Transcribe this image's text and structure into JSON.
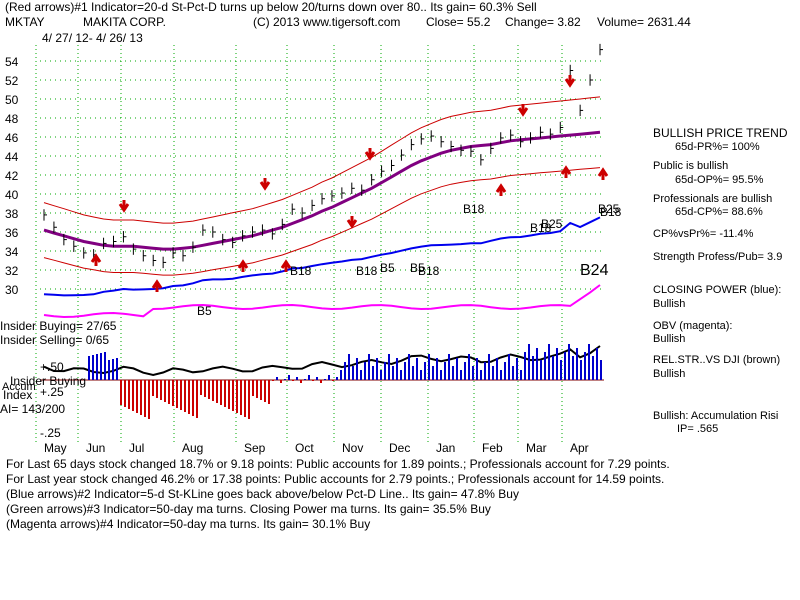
{
  "header": {
    "line1": "(Red arrows)#1 Indicator=20-d St-Pct-D turns up below 20/turns down over 80.. Its gain= 60.3% Sell",
    "ticker": "MKTAY",
    "company": "MAKITA CORP.",
    "copyright": "(C) 2013 www.tigersoft.com",
    "close": "Close=  55.2",
    "change": "Change= 3.82",
    "volume": "Volume= 2631.44",
    "date_range": "4/ 27/ 12-  4/ 26/ 13"
  },
  "insider": {
    "buying": "Insider Buying= 27/65",
    "selling": "Insider Selling= 0/65",
    "buying_index_1": "Insider Buying",
    "buying_index_2": "Index",
    "ai": "AI= 143/200",
    "accum_label": "Accum",
    "plus50": "+.50",
    "plus25": "+.25",
    "minus25": "-.25"
  },
  "side_panel": {
    "bullish_trend": "BULLISH PRICE TREND",
    "pr": "65d-PR%= 100%",
    "public_bullish": "Public is bullish",
    "op": "65d-OP%= 95.5%",
    "prof_bullish": "Professionals are bullish",
    "cp": "65d-CP%= 88.6%",
    "cp_vs_pr": "CP%vsPr%= -11.4%",
    "strength": "Strength Profess/Pub= 3.9",
    "closing_power": "CLOSING POWER (blue):",
    "closing_power_val": "Bullish",
    "obv": "OBV (magenta):",
    "obv_val": "Bullish",
    "relstr": "REL.STR..VS DJI (brown)",
    "relstr_val": "Bullish",
    "accum": "Bullish: Accumulation Risi",
    "ip": "IP=  .565"
  },
  "footer": {
    "line1": "For Last 65 days stock changed  18.7% or  9.18 points:  Public accounts for  1.89 points.;  Professionals account for  7.29 points.",
    "line2": "For Last year stock changed  46.2% or  17.38 points:  Public accounts for  2.79 points.;  Professionals account for  14.59 points.",
    "line3": "(Blue arrows)#2 Indicator=5-d St-KLine goes back above/below Pct-D Line.. Its gain= 47.8% Buy",
    "line4": "(Green arrows)#3 Indicator=50-day ma turns. Closing Power ma turns. Its gain= 35.5% Buy",
    "line5": "(Magenta arrows)#4 Indicator=50-day ma turns. Its gain= 30.1% Buy"
  },
  "colors": {
    "band": "#cc0000",
    "ma": "#800080",
    "closing_power": "#0000ee",
    "obv": "#ff00ff",
    "accum_blue": "#0000cc",
    "accum_red": "#cc0000",
    "grid": "#00aa00"
  },
  "chart_data": {
    "type": "line",
    "title": "MKTAY MAKITA CORP.",
    "x_ticks": [
      "May",
      "Jun",
      "Jul",
      "Aug",
      "Sep",
      "Oct",
      "Nov",
      "Dec",
      "Jan",
      "Feb",
      "Mar",
      "Apr"
    ],
    "y_ticks": [
      30,
      32,
      34,
      36,
      38,
      40,
      42,
      44,
      46,
      48,
      50,
      52,
      54
    ],
    "ylim": [
      29,
      56
    ],
    "price_close": [
      37.8,
      36.5,
      35.2,
      34.5,
      33.8,
      33.6,
      34.8,
      35.0,
      35.5,
      34.2,
      33.5,
      33.0,
      32.8,
      33.8,
      33.5,
      34.4,
      36.2,
      36.0,
      35.2,
      34.9,
      35.6,
      36.0,
      36.2,
      35.8,
      36.8,
      38.4,
      38.0,
      38.8,
      39.5,
      39.8,
      40.1,
      40.6,
      40.4,
      41.5,
      42.4,
      43.0,
      44.1,
      45.2,
      45.8,
      46.1,
      45.5,
      45.0,
      44.6,
      44.5,
      43.6,
      44.8,
      45.9,
      46.2,
      45.5,
      45.9,
      46.5,
      46.3,
      47.0,
      53.0,
      48.8,
      52.0,
      55.2
    ],
    "ma50": [
      36.2,
      35.9,
      35.6,
      35.3,
      35.0,
      34.8,
      34.6,
      34.5,
      34.5,
      34.5,
      34.4,
      34.3,
      34.2,
      34.2,
      34.3,
      34.4,
      34.6,
      34.8,
      35.0,
      35.2,
      35.4,
      35.6,
      35.9,
      36.2,
      36.5,
      36.9,
      37.3,
      37.7,
      38.2,
      38.6,
      39.1,
      39.6,
      40.1,
      40.6,
      41.2,
      41.8,
      42.4,
      43.0,
      43.5,
      43.9,
      44.3,
      44.6,
      44.8,
      45.0,
      45.1,
      45.2,
      45.4,
      45.6,
      45.7,
      45.8,
      45.9,
      46.0,
      46.1,
      46.2,
      46.3,
      46.4,
      46.5
    ],
    "closing_power_last": "B24",
    "signals": [
      "B5",
      "B18",
      "B5",
      "B18",
      "B5",
      "B18",
      "B18",
      "B18",
      "B25",
      "B25",
      "B18",
      "B24"
    ],
    "xlabel": "",
    "ylabel": ""
  }
}
